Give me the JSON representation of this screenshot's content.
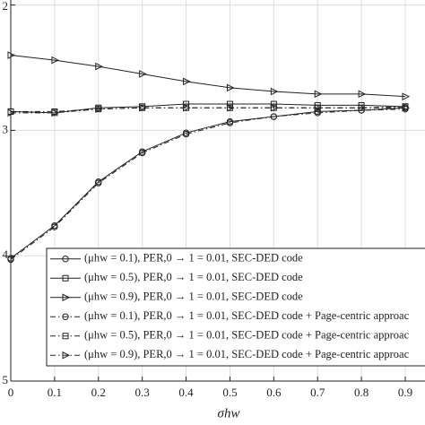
{
  "chart_data": {
    "type": "line",
    "x_label": "σhw",
    "x": [
      0,
      0.1,
      0.2,
      0.3,
      0.4,
      0.5,
      0.6,
      0.7,
      0.8,
      0.9
    ],
    "xlim": [
      0,
      0.945
    ],
    "xticks": [
      0,
      0.1,
      0.2,
      0.3,
      0.4,
      0.5,
      0.6,
      0.7,
      0.8,
      0.9
    ],
    "ylim": [
      -5,
      -1.96
    ],
    "yticks": [
      {
        "value": -2,
        "label": "2"
      },
      {
        "value": -3,
        "label": "3"
      },
      {
        "value": -4,
        "label": "4"
      },
      {
        "value": -5,
        "label": "5"
      }
    ],
    "grid": true,
    "legend": "lower right",
    "series": [
      {
        "name": "(μhw = 0.1), PER,0 → 1 = 0.01, SEC-DED code",
        "color": "#222222",
        "marker": "circle",
        "linestyle": "solid",
        "values": [
          -4.02,
          -3.76,
          -3.41,
          -3.17,
          -3.02,
          -2.93,
          -2.89,
          -2.85,
          -2.84,
          -2.82
        ]
      },
      {
        "name": "(μhw = 0.5), PER,0 → 1 = 0.01, SEC-DED code",
        "color": "#222222",
        "marker": "square",
        "linestyle": "solid",
        "values": [
          -2.85,
          -2.86,
          -2.82,
          -2.81,
          -2.79,
          -2.79,
          -2.79,
          -2.8,
          -2.8,
          -2.81
        ]
      },
      {
        "name": "(μhw = 0.9), PER,0 → 1 = 0.01, SEC-DED code",
        "color": "#222222",
        "marker": "triangle",
        "linestyle": "solid",
        "values": [
          -2.4,
          -2.44,
          -2.49,
          -2.55,
          -2.61,
          -2.66,
          -2.69,
          -2.71,
          -2.71,
          -2.73
        ]
      },
      {
        "name": "(μhw = 0.1), PER,0 → 1 = 0.01, SEC-DED code + Page-centric approac",
        "color": "#222222",
        "marker": "circle",
        "linestyle": "dashdot",
        "values": [
          -4.03,
          -3.77,
          -3.42,
          -3.18,
          -3.03,
          -2.94,
          -2.89,
          -2.86,
          -2.84,
          -2.83
        ]
      },
      {
        "name": "(μhw = 0.5), PER,0 → 1 = 0.01, SEC-DED code + Page-centric approac",
        "color": "#222222",
        "marker": "square",
        "linestyle": "dashdot",
        "values": [
          -2.85,
          -2.85,
          -2.83,
          -2.82,
          -2.82,
          -2.82,
          -2.82,
          -2.82,
          -2.82,
          -2.81
        ]
      },
      {
        "name": "(μhw = 0.9), PER,0 → 1 = 0.01, SEC-DED code + Page-centric approac",
        "color": "#222222",
        "marker": "triangle",
        "linestyle": "dashdot",
        "values": [
          -2.86,
          -2.86,
          -2.83,
          -2.82,
          -2.82,
          -2.82,
          -2.82,
          -2.82,
          -2.82,
          -2.82
        ]
      }
    ]
  }
}
